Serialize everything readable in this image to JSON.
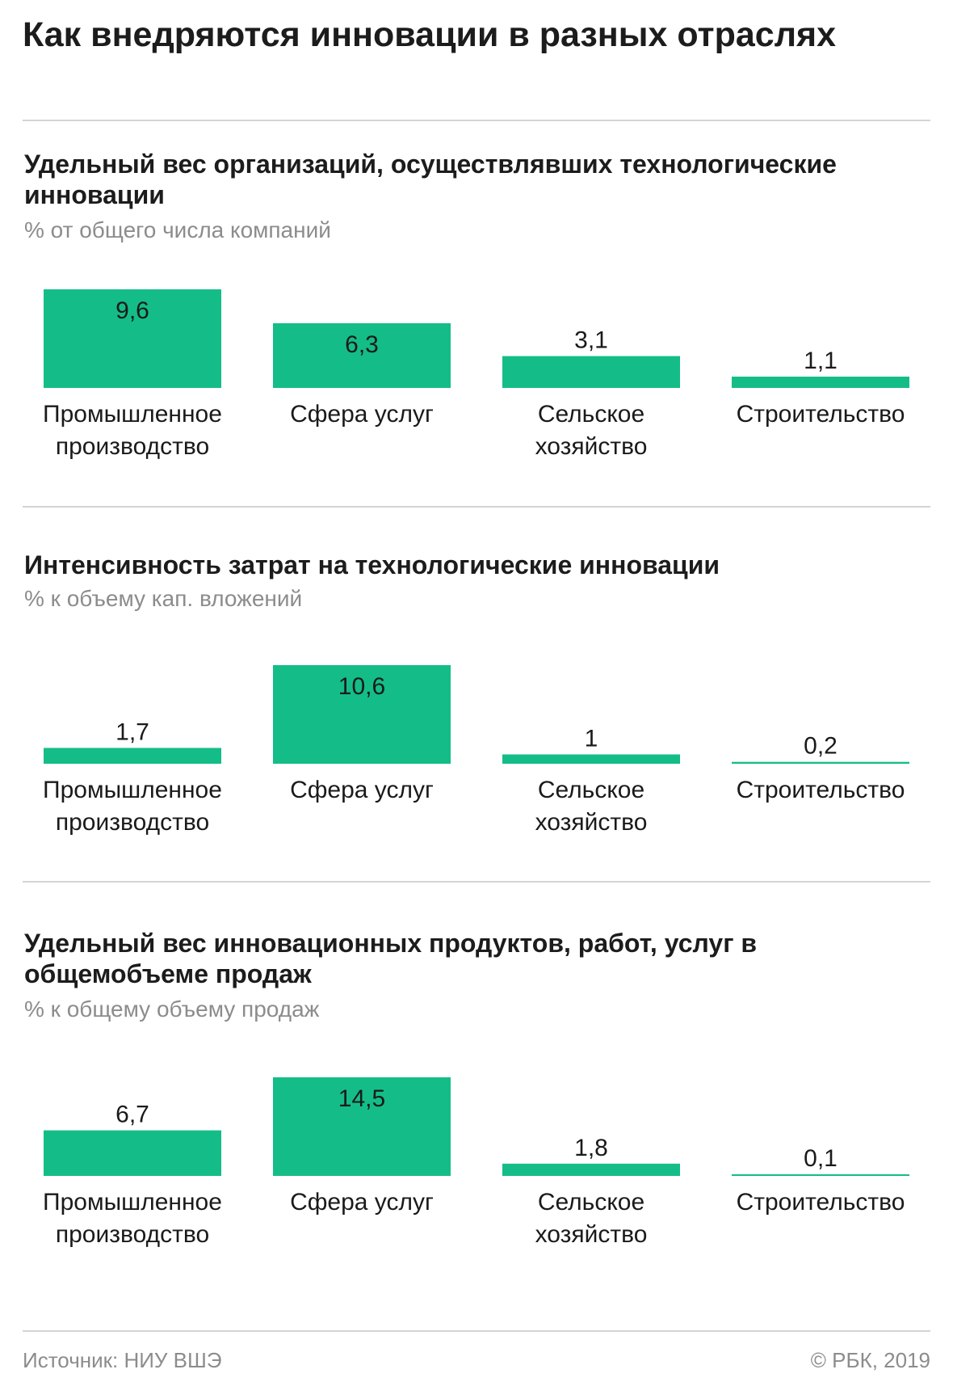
{
  "title": "Как внедряются инновации в разных отраслях",
  "colors": {
    "bar": "#14bd87",
    "rule": "#d4d4d4",
    "muted": "#8c8c8c"
  },
  "footer": {
    "source": "Источник: НИУ ВШЭ",
    "copyright": "© РБК, 2019"
  },
  "chart_data": [
    {
      "type": "bar",
      "title": "Удельный вес организаций, осуществлявших технологические инновации",
      "subtitle": "% от общего числа компаний",
      "categories": [
        [
          "Промышленное",
          "производство"
        ],
        [
          "Сфера услуг"
        ],
        [
          "Сельское",
          "хозяйство"
        ],
        [
          "Строительство"
        ]
      ],
      "values": [
        9.6,
        6.3,
        3.1,
        1.1
      ],
      "labels": [
        "9,6",
        "6,3",
        "3,1",
        "1,1"
      ],
      "ylim": [
        0,
        9.6
      ]
    },
    {
      "type": "bar",
      "title": "Интенсивность затрат на технологические инновации",
      "subtitle": "% к объему кап. вложений",
      "categories": [
        [
          "Промышленное",
          "производство"
        ],
        [
          "Сфера услуг"
        ],
        [
          "Сельское",
          "хозяйство"
        ],
        [
          "Строительство"
        ]
      ],
      "values": [
        1.7,
        10.6,
        1,
        0.2
      ],
      "labels": [
        "1,7",
        "10,6",
        "1",
        "0,2"
      ],
      "ylim": [
        0,
        10.6
      ]
    },
    {
      "type": "bar",
      "title": "Удельный вес инновационных продуктов, работ, услуг в общемобъеме продаж",
      "subtitle": "% к общему объему продаж",
      "categories": [
        [
          "Промышленное",
          "производство"
        ],
        [
          "Сфера услуг"
        ],
        [
          "Сельское",
          "хозяйство"
        ],
        [
          "Строительство"
        ]
      ],
      "values": [
        6.7,
        14.5,
        1.8,
        0.1
      ],
      "labels": [
        "6,7",
        "14,5",
        "1,8",
        "0,1"
      ],
      "ylim": [
        0,
        14.5
      ]
    }
  ]
}
